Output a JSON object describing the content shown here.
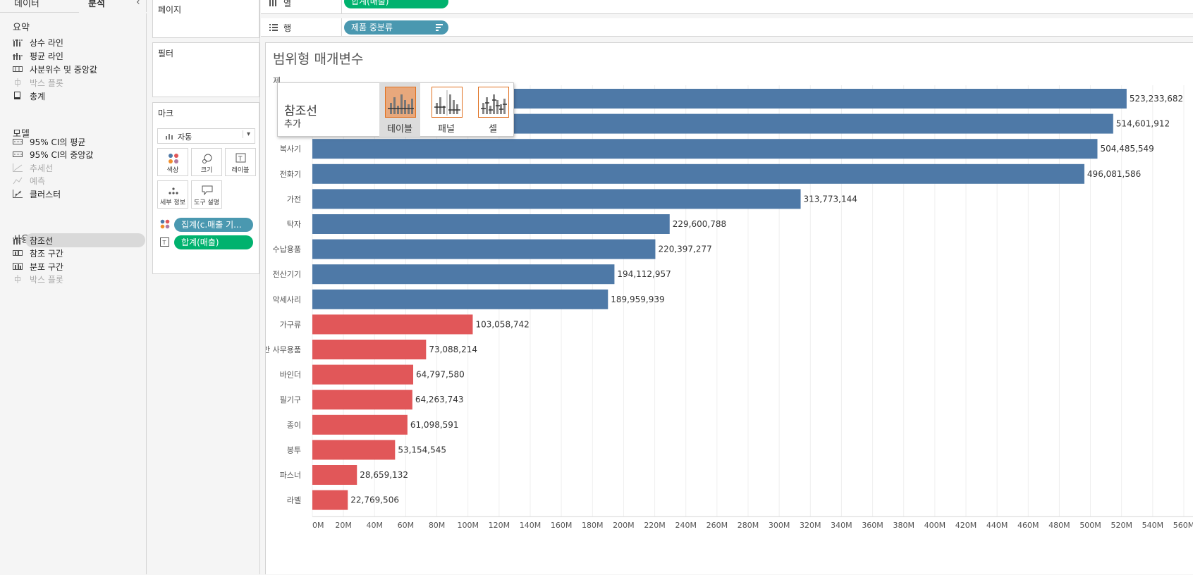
{
  "left_pane": {
    "tabs": [
      "데이터",
      "분석"
    ],
    "collapse_glyph": "‹",
    "sections": [
      {
        "title": "요약",
        "items": [
          {
            "label": "상수 라인",
            "icon": "constant-line-icon",
            "enabled": true
          },
          {
            "label": "평균 라인",
            "icon": "average-line-icon",
            "enabled": true
          },
          {
            "label": "사분위수 및 중앙값",
            "icon": "quartile-icon",
            "enabled": true
          },
          {
            "label": "박스 플롯",
            "icon": "box-plot-icon",
            "enabled": false
          },
          {
            "label": "총계",
            "icon": "totals-icon",
            "enabled": true
          }
        ]
      },
      {
        "title": "모델",
        "items": [
          {
            "label": "95% CI의 평균",
            "icon": "ci-mean-icon",
            "enabled": true
          },
          {
            "label": "95% CI의 중앙값",
            "icon": "ci-median-icon",
            "enabled": true
          },
          {
            "label": "추세선",
            "icon": "trend-line-icon",
            "enabled": false
          },
          {
            "label": "예측",
            "icon": "forecast-icon",
            "enabled": false
          },
          {
            "label": "클러스터",
            "icon": "cluster-icon",
            "enabled": true
          }
        ]
      },
      {
        "title": "사용자 지정",
        "items": [
          {
            "label": "참조선",
            "icon": "reference-line-icon",
            "enabled": true,
            "selected": true
          },
          {
            "label": "참조 구간",
            "icon": "reference-band-icon",
            "enabled": true
          },
          {
            "label": "분포 구간",
            "icon": "distribution-band-icon",
            "enabled": true
          },
          {
            "label": "박스 플롯",
            "icon": "box-plot-icon",
            "enabled": false
          }
        ]
      }
    ]
  },
  "shelves": {
    "pages_label": "페이지",
    "filters_label": "필터",
    "marks": {
      "title": "마크",
      "type_label": "자동",
      "buttons": [
        "색상",
        "크기",
        "레이블",
        "세부 정보",
        "도구 설명"
      ],
      "pills": [
        "집계(c.매출 기...",
        "합계(매출)"
      ]
    },
    "columns_label": "열",
    "columns_pill": "합계(매출)",
    "rows_label": "행",
    "rows_pill": "제품 중분류"
  },
  "popup": {
    "title": "참조선",
    "subtitle": "추가",
    "options": [
      "테이블",
      "패널",
      "셀"
    ],
    "selected": "테이블"
  },
  "colors": {
    "bar_high": "#4e79a7",
    "bar_low": "#e15759",
    "pill_blue": "#4a98b0",
    "pill_green": "#00b26e"
  },
  "chart_data": {
    "type": "bar",
    "orientation": "horizontal",
    "title": "범위형 매개변수",
    "axis_header_glyph": "제",
    "categories": [
      "",
      "",
      "복사기",
      "전화기",
      "가전",
      "탁자",
      "수납용품",
      "전산기기",
      "악세사리",
      "가구류",
      "일반 사무용품",
      "바인더",
      "필기구",
      "종이",
      "봉투",
      "파스너",
      "라벨"
    ],
    "values": [
      523233682,
      514601912,
      504485549,
      496081586,
      313773144,
      229600788,
      220397277,
      194112957,
      189959939,
      103058742,
      73088214,
      64797580,
      64263743,
      61098591,
      53154545,
      28659132,
      22769506
    ],
    "value_labels": [
      "523,233,682",
      "514,601,912",
      "504,485,549",
      "496,081,586",
      "313,773,144",
      "229,600,788",
      "220,397,277",
      "194,112,957",
      "189,959,939",
      "103,058,742",
      "73,088,214",
      "64,797,580",
      "64,263,743",
      "61,098,591",
      "53,154,545",
      "28,659,132",
      "22,769,506"
    ],
    "color_group": [
      "high",
      "high",
      "high",
      "high",
      "high",
      "high",
      "high",
      "high",
      "high",
      "low",
      "low",
      "low",
      "low",
      "low",
      "low",
      "low",
      "low"
    ],
    "x_ticks": [
      "0M",
      "20M",
      "40M",
      "60M",
      "80M",
      "100M",
      "120M",
      "140M",
      "160M",
      "180M",
      "200M",
      "220M",
      "240M",
      "260M",
      "280M",
      "300M",
      "320M",
      "340M",
      "360M",
      "380M",
      "400M",
      "420M",
      "440M",
      "460M",
      "480M",
      "500M",
      "520M",
      "540M",
      "560M"
    ],
    "xlim": [
      0,
      560000000
    ]
  }
}
